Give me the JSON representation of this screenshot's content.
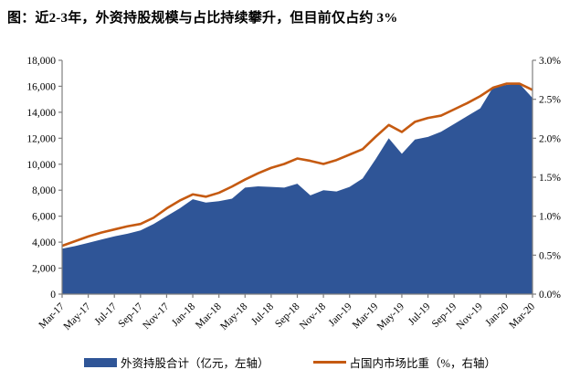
{
  "title": "图：近2-3年，外资持股规模与占比持续攀升，但目前仅占约 3%",
  "colors": {
    "area": "#2F5597",
    "line": "#C55A11",
    "axis": "#7F7F7F",
    "text": "#000000"
  },
  "legend": [
    {
      "label": "外资持股合计（亿元，左轴）",
      "type": "area",
      "color": "#2F5597"
    },
    {
      "label": "占国内市场比重（%，右轴）",
      "type": "line",
      "color": "#C55A11"
    }
  ],
  "chart_data": {
    "type": "area+line",
    "title": "图：近2-3年，外资持股规模与占比持续攀升，但目前仅占约 3%",
    "x": [
      "Mar-17",
      "Apr-17",
      "May-17",
      "Jun-17",
      "Jul-17",
      "Aug-17",
      "Sep-17",
      "Oct-17",
      "Nov-17",
      "Dec-17",
      "Jan-18",
      "Feb-18",
      "Mar-18",
      "Apr-18",
      "May-18",
      "Jun-18",
      "Jul-18",
      "Aug-18",
      "Sep-18",
      "Oct-18",
      "Nov-18",
      "Dec-18",
      "Jan-19",
      "Feb-19",
      "Mar-19",
      "Apr-19",
      "May-19",
      "Jun-19",
      "Jul-19",
      "Aug-19",
      "Sep-19",
      "Oct-19",
      "Nov-19",
      "Dec-19",
      "Jan-20",
      "Feb-20",
      "Mar-20"
    ],
    "x_tick_every": 2,
    "series": [
      {
        "name": "外资持股合计（亿元，左轴）",
        "type": "area",
        "axis": "left",
        "color": "#2F5597",
        "values": [
          3500,
          3700,
          3950,
          4200,
          4450,
          4650,
          4900,
          5400,
          6000,
          6600,
          7300,
          7050,
          7150,
          7350,
          8200,
          8300,
          8250,
          8200,
          8500,
          7600,
          8000,
          7900,
          8250,
          8900,
          10400,
          12000,
          10800,
          11900,
          12100,
          12500,
          13100,
          13700,
          14300,
          15950,
          16100,
          16200,
          15100
        ]
      },
      {
        "name": "占国内市场比重（%，右轴）",
        "type": "line",
        "axis": "right",
        "color": "#C55A11",
        "values": [
          0.62,
          0.68,
          0.74,
          0.79,
          0.83,
          0.87,
          0.9,
          0.98,
          1.1,
          1.2,
          1.28,
          1.25,
          1.3,
          1.38,
          1.47,
          1.55,
          1.62,
          1.67,
          1.74,
          1.71,
          1.67,
          1.72,
          1.79,
          1.86,
          2.02,
          2.17,
          2.08,
          2.21,
          2.26,
          2.29,
          2.37,
          2.45,
          2.54,
          2.65,
          2.7,
          2.7,
          2.62
        ]
      }
    ],
    "left_axis": {
      "ticks": [
        "0",
        "2,000",
        "4,000",
        "6,000",
        "8,000",
        "10,000",
        "12,000",
        "14,000",
        "16,000",
        "18,000"
      ],
      "lim": [
        0,
        18000
      ]
    },
    "right_axis": {
      "ticks": [
        "0.0%",
        "0.5%",
        "1.0%",
        "1.5%",
        "2.0%",
        "2.5%",
        "3.0%"
      ],
      "lim": [
        0,
        3
      ]
    },
    "grid": false,
    "legend_position": "bottom"
  }
}
